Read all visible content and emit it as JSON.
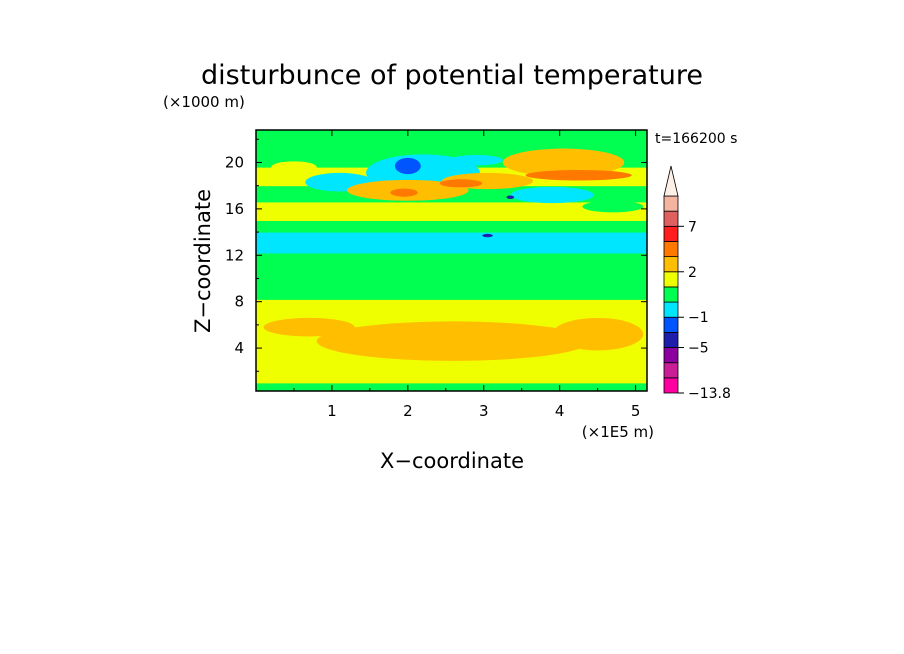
{
  "chart_data": {
    "type": "heatmap",
    "title": "disturbunce of potential temperature",
    "xlabel": "X−coordinate",
    "ylabel": "Z−coordinate",
    "x_unit_label": "(×1E5 m)",
    "y_unit_label": "(×1000 m)",
    "time_label": "t=166200 s",
    "xlim": [
      0.0,
      5.15
    ],
    "ylim": [
      0.3,
      22.8
    ],
    "x_ticks": [
      1,
      2,
      3,
      4,
      5
    ],
    "x_tick_labels": [
      "1",
      "2",
      "3",
      "4",
      "5"
    ],
    "y_ticks": [
      4,
      8,
      12,
      16,
      20
    ],
    "y_tick_labels": [
      "4",
      "8",
      "12",
      "16",
      "20"
    ],
    "colorbar": {
      "orientation": "vertical",
      "extend": "max",
      "labels": [
        {
          "text": "7",
          "level": 7
        },
        {
          "text": "2",
          "level": 2
        },
        {
          "text": "−1",
          "level": -1
        },
        {
          "text": "−5",
          "level": -5
        },
        {
          "text": "−13.8",
          "level": -13.8
        }
      ],
      "bins": [
        {
          "color": "#ff00a0",
          "range": [
            -13.8,
            -9
          ]
        },
        {
          "color": "#c81e96",
          "range": [
            -9,
            -7
          ]
        },
        {
          "color": "#8c00a0",
          "range": [
            -7,
            -5
          ]
        },
        {
          "color": "#1e1eaa",
          "range": [
            -5,
            -3
          ]
        },
        {
          "color": "#0055ff",
          "range": [
            -3,
            -1
          ]
        },
        {
          "color": "#00e6ff",
          "range": [
            -1,
            0
          ]
        },
        {
          "color": "#00ff50",
          "range": [
            0,
            1
          ]
        },
        {
          "color": "#f0ff00",
          "range": [
            1,
            2
          ]
        },
        {
          "color": "#ffbe00",
          "range": [
            2,
            3
          ]
        },
        {
          "color": "#ff7800",
          "range": [
            3,
            5
          ]
        },
        {
          "color": "#ff1e1e",
          "range": [
            5,
            7
          ]
        },
        {
          "color": "#e06060",
          "range": [
            7,
            9
          ]
        },
        {
          "color": "#f5b4a0",
          "range": [
            9,
            11
          ]
        },
        {
          "color": "#fff0e6",
          "range": [
            11,
            null
          ]
        }
      ]
    },
    "z_bands": [
      {
        "z": [
          0.3,
          1.0
        ],
        "color": "#00ff50"
      },
      {
        "z": [
          1.0,
          2.0
        ],
        "color": "#f0ff00"
      },
      {
        "z": [
          2.0,
          7.2
        ],
        "color": "#f0ff00"
      },
      {
        "z": [
          7.2,
          8.2
        ],
        "color": "#f0ff00"
      },
      {
        "z": [
          8.2,
          12.2
        ],
        "color": "#00ff50"
      },
      {
        "z": [
          12.2,
          14.0
        ],
        "color": "#00e6ff"
      },
      {
        "z": [
          14.0,
          15.0
        ],
        "color": "#00ff50"
      },
      {
        "z": [
          15.0,
          16.6
        ],
        "color": "#f0ff00"
      },
      {
        "z": [
          16.6,
          18.0
        ],
        "color": "#00ff50"
      },
      {
        "z": [
          18.0,
          19.6
        ],
        "color": "#f0ff00"
      },
      {
        "z": [
          19.6,
          22.8
        ],
        "color": "#00ff50"
      }
    ],
    "features": [
      {
        "x": 2.6,
        "z": 4.6,
        "rx": 1.8,
        "rz": 1.7,
        "color": "#ffbe00"
      },
      {
        "x": 0.7,
        "z": 5.8,
        "rx": 0.6,
        "rz": 0.8,
        "color": "#ffbe00"
      },
      {
        "x": 4.5,
        "z": 5.2,
        "rx": 0.6,
        "rz": 1.4,
        "color": "#ffbe00"
      },
      {
        "x": 2.2,
        "z": 19.1,
        "rx": 0.75,
        "rz": 1.6,
        "color": "#00e6ff"
      },
      {
        "x": 1.1,
        "z": 18.3,
        "rx": 0.45,
        "rz": 0.8,
        "color": "#00e6ff"
      },
      {
        "x": 2.0,
        "z": 17.6,
        "rx": 0.8,
        "rz": 0.9,
        "color": "#ffbe00"
      },
      {
        "x": 3.05,
        "z": 18.4,
        "rx": 0.6,
        "rz": 0.7,
        "color": "#ffbe00"
      },
      {
        "x": 4.05,
        "z": 20.0,
        "rx": 0.8,
        "rz": 1.2,
        "color": "#ffbe00"
      },
      {
        "x": 4.25,
        "z": 18.9,
        "rx": 0.7,
        "rz": 0.45,
        "color": "#ff7800"
      },
      {
        "x": 2.9,
        "z": 20.2,
        "rx": 0.35,
        "rz": 0.45,
        "color": "#00e6ff"
      },
      {
        "x": 3.9,
        "z": 17.2,
        "rx": 0.55,
        "rz": 0.7,
        "color": "#00e6ff"
      },
      {
        "x": 1.95,
        "z": 17.4,
        "rx": 0.18,
        "rz": 0.35,
        "color": "#ff7800"
      },
      {
        "x": 2.7,
        "z": 18.2,
        "rx": 0.28,
        "rz": 0.35,
        "color": "#ff7800"
      },
      {
        "x": 2.0,
        "z": 19.7,
        "rx": 0.17,
        "rz": 0.7,
        "color": "#0055ff"
      },
      {
        "x": 3.35,
        "z": 17.0,
        "rx": 0.05,
        "rz": 0.15,
        "color": "#1e1eaa"
      },
      {
        "x": 3.05,
        "z": 13.7,
        "rx": 0.07,
        "rz": 0.15,
        "color": "#1e1eaa"
      },
      {
        "x": 0.5,
        "z": 19.6,
        "rx": 0.3,
        "rz": 0.5,
        "color": "#f0ff00"
      },
      {
        "x": 4.7,
        "z": 16.2,
        "rx": 0.4,
        "rz": 0.5,
        "color": "#00ff50"
      }
    ]
  }
}
